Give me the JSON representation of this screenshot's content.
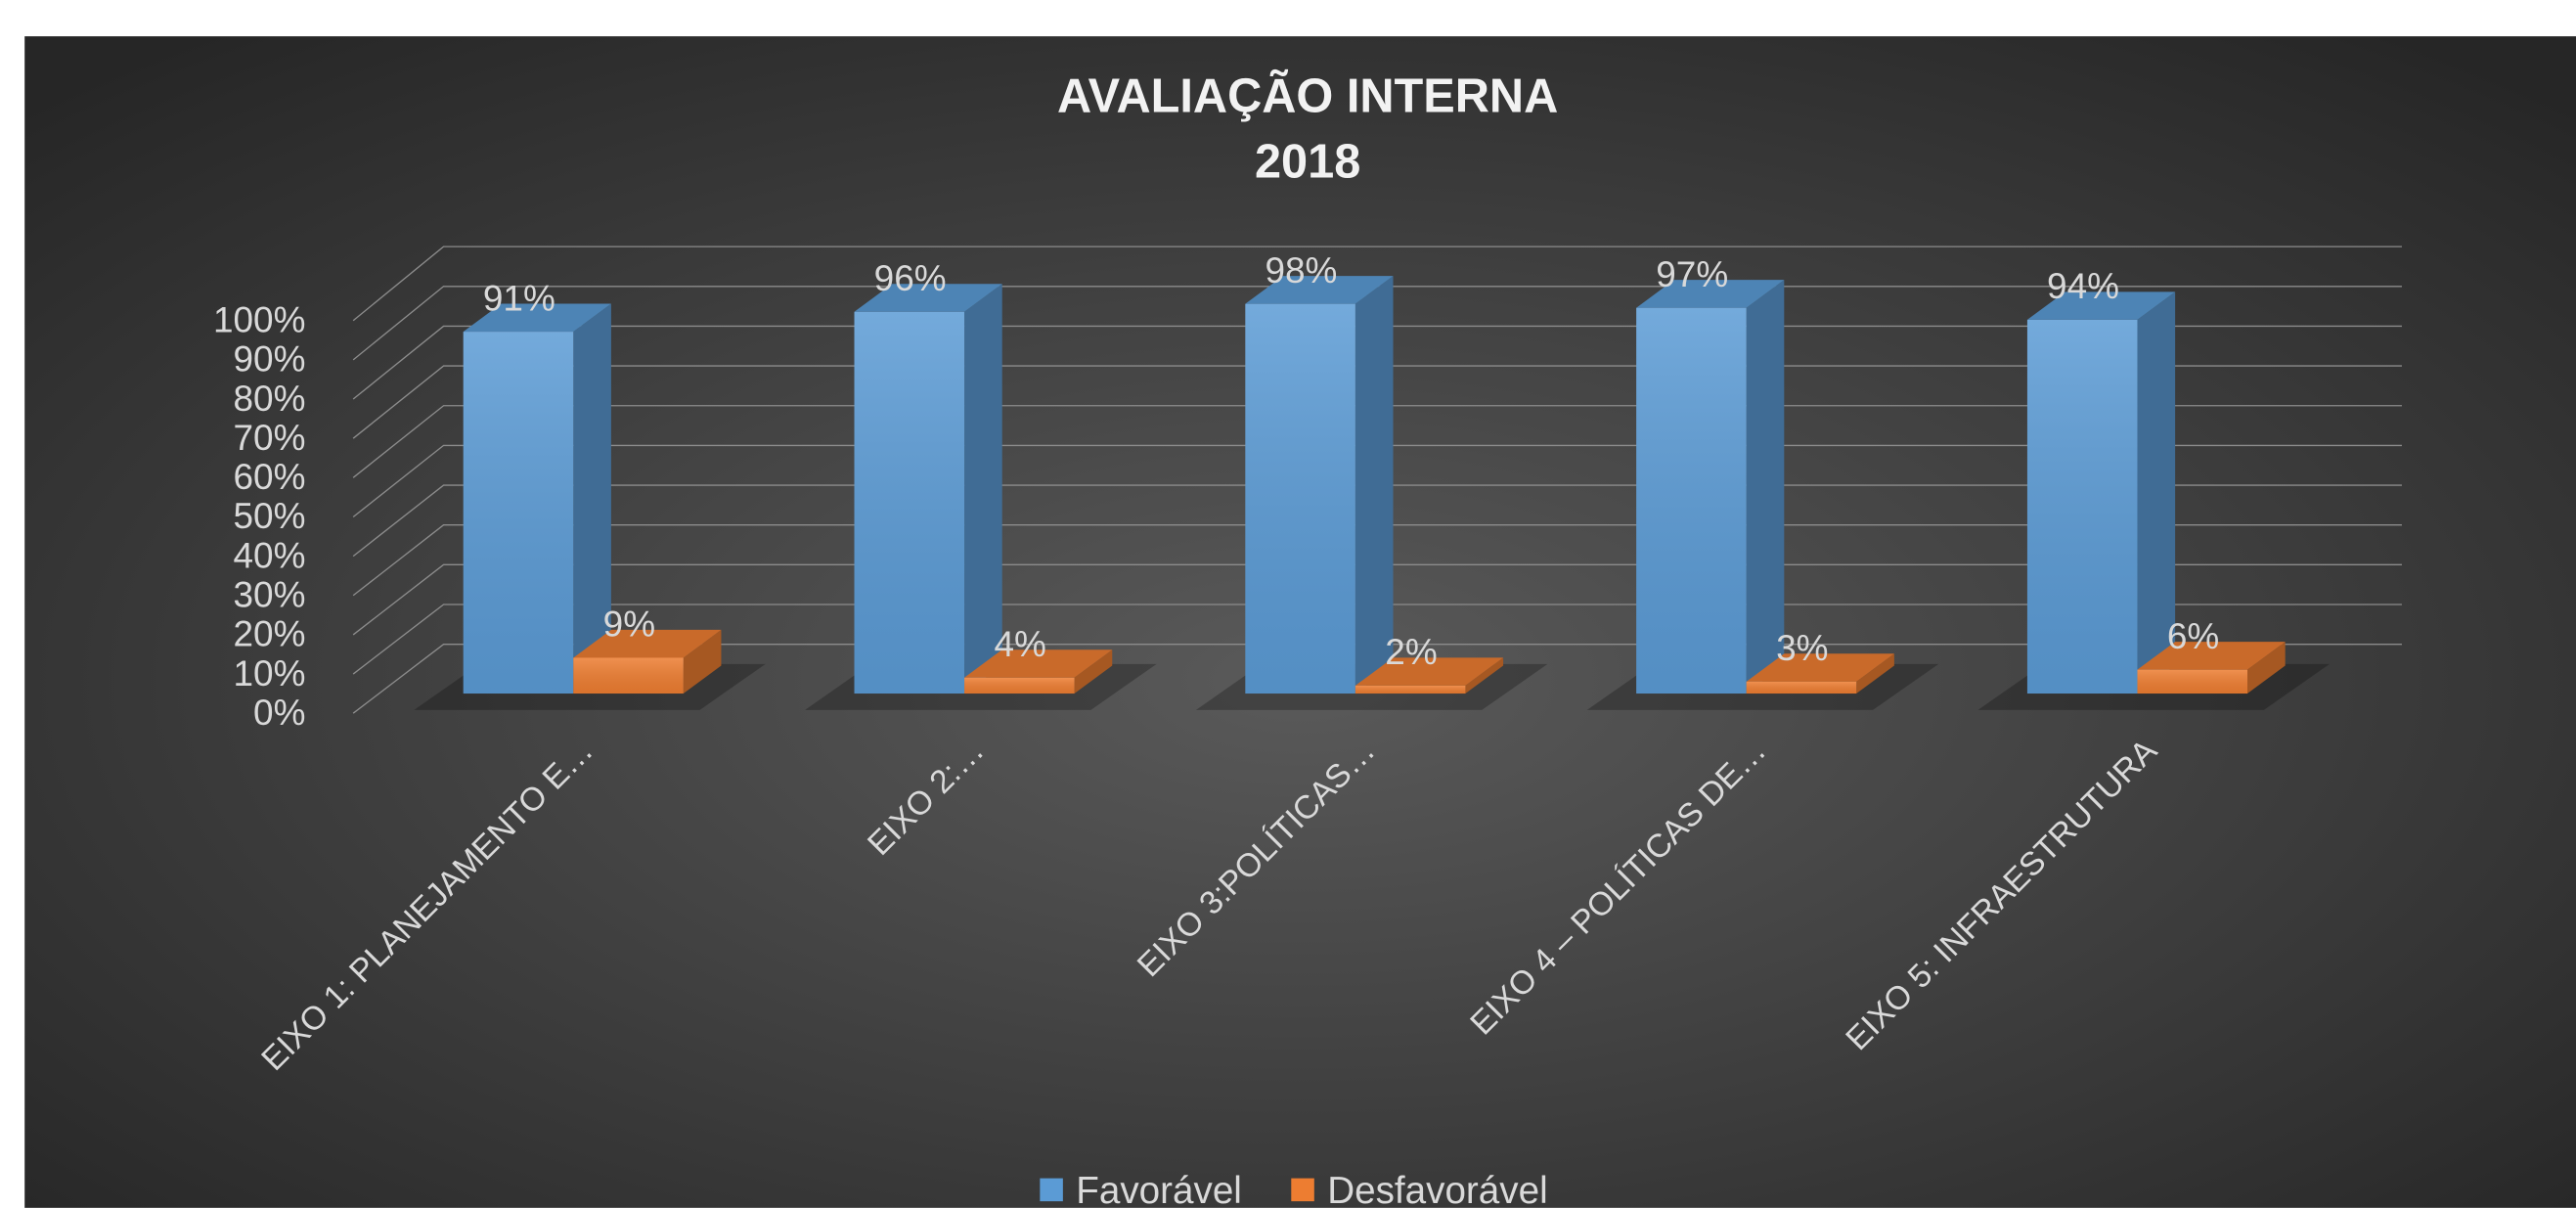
{
  "chart_data": {
    "type": "bar3d",
    "title": "AVALIAÇÃO INTERNA",
    "subtitle": "2018",
    "categories": [
      "EIXO 1: PLANEJAMENTO E…",
      "EIXO 2:…",
      "EIXO 3:POLÍTICAS…",
      "EIXO 4 – POLÍTICAS DE…",
      "EIXO 5: INFRAESTRUTURA"
    ],
    "series": [
      {
        "name": "Favorável",
        "color": "#5b9bd5",
        "values": [
          91,
          96,
          98,
          97,
          94
        ],
        "value_labels": [
          "91%",
          "96%",
          "98%",
          "97%",
          "94%"
        ]
      },
      {
        "name": "Desfavorável",
        "color": "#ed7d31",
        "values": [
          9,
          4,
          2,
          3,
          6
        ],
        "value_labels": [
          "9%",
          "4%",
          "2%",
          "3%",
          "6%"
        ]
      }
    ],
    "ylim": [
      0,
      100
    ],
    "yticks": [
      {
        "value": 0,
        "label": "0%"
      },
      {
        "value": 10,
        "label": "10%"
      },
      {
        "value": 20,
        "label": "20%"
      },
      {
        "value": 30,
        "label": "30%"
      },
      {
        "value": 40,
        "label": "40%"
      },
      {
        "value": 50,
        "label": "50%"
      },
      {
        "value": 60,
        "label": "60%"
      },
      {
        "value": 70,
        "label": "70%"
      },
      {
        "value": 80,
        "label": "80%"
      },
      {
        "value": 90,
        "label": "90%"
      },
      {
        "value": 100,
        "label": "100%"
      }
    ],
    "grid": true,
    "legend": "bottom"
  }
}
